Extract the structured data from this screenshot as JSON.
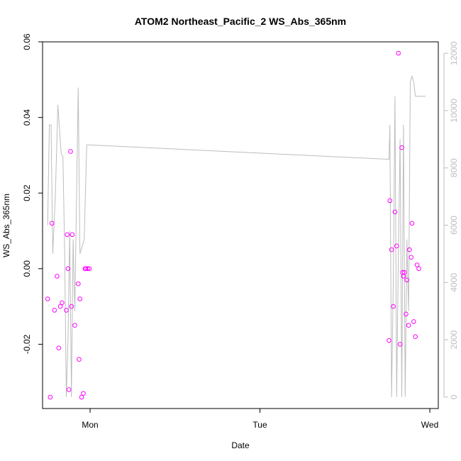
{
  "chart_data": {
    "type": "scatter",
    "title": "ATOM2 Northeast_Pacific_2 WS_Abs_365nm",
    "xlabel": "Date",
    "ylabel": "WS_Abs_365nm",
    "x_ticks": [
      "Mon",
      "Tue",
      "Wed"
    ],
    "y_ticks": [
      "-0.02",
      "0.00",
      "0.02",
      "0.04",
      "0.06"
    ],
    "y2_ticks": [
      "0",
      "2000",
      "4000",
      "6000",
      "8000",
      "10000",
      "12000"
    ],
    "xlim": [
      -0.28,
      2.05
    ],
    "ylim": [
      -0.037,
      0.06
    ],
    "y2lim": [
      -400,
      12400
    ],
    "grid": false,
    "colors": {
      "points": "#ff00ff",
      "line": "#bdbdbd",
      "axis": "#000000",
      "right_axis": "#bdbdbd"
    },
    "series": [
      {
        "type": "scatter",
        "x": [
          -0.25,
          -0.235,
          -0.225,
          -0.21,
          -0.195,
          -0.185,
          -0.175,
          -0.165,
          -0.14,
          -0.135,
          -0.13,
          -0.125,
          -0.115,
          -0.11,
          -0.105,
          -0.09,
          -0.07,
          -0.065,
          -0.06,
          -0.05,
          -0.04,
          -0.03,
          -0.025,
          -0.015,
          -0.005,
          1.76,
          1.765,
          1.775,
          1.785,
          1.795,
          1.805,
          1.815,
          1.825,
          1.835,
          1.84,
          1.845,
          1.85,
          1.86,
          1.865,
          1.875,
          1.88,
          1.89,
          1.895,
          1.905,
          1.915,
          1.925,
          1.935
        ],
        "y": [
          -0.008,
          -0.034,
          0.012,
          -0.011,
          -0.002,
          -0.021,
          -0.01,
          -0.009,
          -0.011,
          0.009,
          0.0,
          -0.032,
          0.031,
          -0.01,
          0.009,
          -0.015,
          -0.004,
          -0.024,
          -0.008,
          -0.034,
          -0.033,
          0.0,
          0.0,
          0.0,
          0.0,
          -0.019,
          0.018,
          0.005,
          -0.01,
          0.015,
          0.006,
          0.057,
          -0.02,
          0.032,
          -0.001,
          -0.002,
          -0.001,
          -0.012,
          -0.003,
          -0.015,
          0.005,
          0.003,
          0.012,
          -0.014,
          -0.018,
          0.001,
          0.0
        ]
      },
      {
        "type": "line",
        "axis": "right",
        "x": [
          -0.25,
          -0.24,
          -0.23,
          -0.22,
          -0.205,
          -0.19,
          -0.17,
          -0.16,
          -0.15,
          -0.14,
          -0.13,
          -0.12,
          -0.11,
          -0.1,
          -0.09,
          -0.08,
          -0.07,
          -0.06,
          -0.05,
          -0.035,
          -0.02,
          -0.015,
          -0.01,
          0.0,
          1.76,
          1.765,
          1.775,
          1.785,
          1.795,
          1.805,
          1.815,
          1.825,
          1.835,
          1.845,
          1.855,
          1.865,
          1.875,
          1.885,
          1.895,
          1.905,
          1.915,
          1.925,
          1.935,
          1.945,
          1.955,
          1.965,
          1.975
        ],
        "y": [
          6000,
          9500,
          9500,
          5000,
          7000,
          10200,
          8500,
          8400,
          5200,
          0,
          2000,
          5800,
          0,
          5500,
          3000,
          7000,
          10800,
          5000,
          5200,
          5500,
          8800,
          8800,
          8800,
          8800,
          8300,
          9500,
          0,
          4000,
          10500,
          0,
          5000,
          9000,
          0,
          9500,
          0,
          5500,
          3000,
          11000,
          11200,
          11000,
          10500,
          10500,
          10500,
          10500,
          10500,
          10500,
          10500
        ]
      }
    ]
  }
}
